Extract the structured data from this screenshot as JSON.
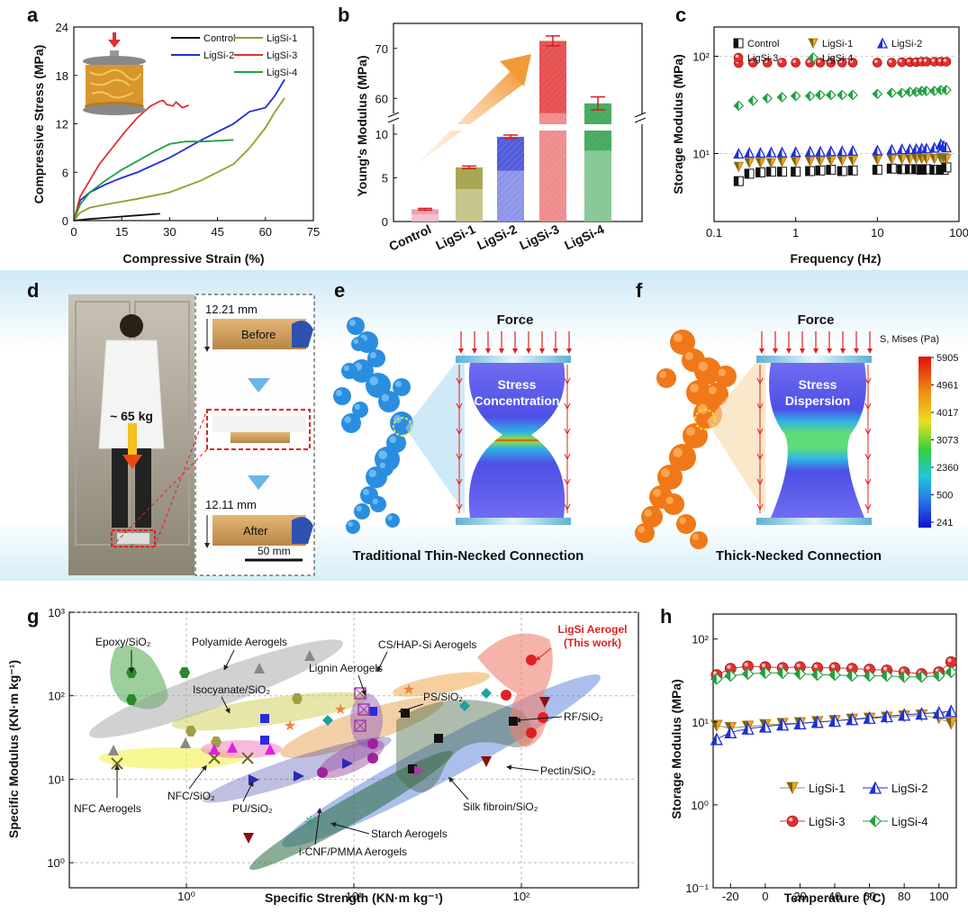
{
  "panels": {
    "a": "a",
    "b": "b",
    "c": "c",
    "d": "d",
    "e": "e",
    "f": "f",
    "g": "g",
    "h": "h"
  },
  "colors": {
    "control": "#111111",
    "ligsi1": "#9a9a2e",
    "ligsi2": "#1f2fd6",
    "ligsi3": "#e03030",
    "ligsi4": "#20a040"
  },
  "chart_data": [
    {
      "id": "a",
      "type": "line",
      "xlabel": "Compressive Strain (%)",
      "ylabel": "Compressive Stress (MPa)",
      "xlim": [
        0,
        75
      ],
      "ylim": [
        0,
        24
      ],
      "xticks": [
        "0",
        "15",
        "30",
        "45",
        "60",
        "75"
      ],
      "yticks": [
        "0",
        "6",
        "12",
        "18",
        "24"
      ],
      "series": [
        {
          "name": "Control",
          "x": [
            0,
            5,
            10,
            15,
            20,
            27
          ],
          "y": [
            0,
            0.2,
            0.35,
            0.5,
            0.65,
            0.85
          ]
        },
        {
          "name": "LigSi-1",
          "x": [
            0,
            2,
            5,
            10,
            20,
            30,
            40,
            50,
            55,
            60,
            63,
            66
          ],
          "y": [
            0,
            1,
            1.6,
            2,
            2.7,
            3.5,
            5,
            7,
            9,
            11.5,
            13.5,
            15.2
          ]
        },
        {
          "name": "LigSi-2",
          "x": [
            0,
            2,
            5,
            10,
            15,
            20,
            30,
            40,
            45,
            50,
            55,
            60,
            63,
            66
          ],
          "y": [
            0,
            2.5,
            3.5,
            4.5,
            5.3,
            6,
            7.8,
            10,
            11,
            12,
            13.5,
            14,
            15.5,
            17.5
          ]
        },
        {
          "name": "LigSi-3",
          "x": [
            0,
            2,
            5,
            8,
            12,
            16,
            20,
            24,
            27,
            28,
            29,
            31,
            32,
            34,
            36
          ],
          "y": [
            0,
            3,
            5,
            7,
            9,
            11,
            12.8,
            14.2,
            14.8,
            14.9,
            14.4,
            14.2,
            14.7,
            14.0,
            14.3
          ]
        },
        {
          "name": "LigSi-4",
          "x": [
            0,
            2,
            5,
            10,
            15,
            20,
            25,
            30,
            35,
            40,
            45,
            50
          ],
          "y": [
            0,
            2,
            3.5,
            5,
            6.3,
            7.4,
            8.5,
            9.5,
            9.8,
            9.8,
            9.9,
            10.0
          ]
        }
      ]
    },
    {
      "id": "b",
      "type": "bar",
      "xlabel": "",
      "ylabel": "Young's Modulus (MPa)",
      "categories": [
        "Control",
        "LigSi-1",
        "LigSi-2",
        "LigSi-3",
        "LigSi-4"
      ],
      "values": [
        1.4,
        6.2,
        9.7,
        71.5,
        59.0
      ],
      "errors": [
        0.1,
        0.15,
        0.2,
        1.0,
        1.3
      ],
      "ylim_lower": [
        0,
        10
      ],
      "ylim_upper": [
        55,
        75
      ],
      "yticks_lower": [
        "0",
        "5",
        "10"
      ],
      "yticks_upper": [
        "60",
        "70"
      ]
    },
    {
      "id": "c",
      "type": "scatter",
      "xlabel": "Frequency (Hz)",
      "ylabel": "Storage Modulus (MPa)",
      "xscale": "log",
      "yscale": "log",
      "xlim": [
        0.1,
        100
      ],
      "ylim": [
        2,
        200
      ],
      "xticks": [
        "0.1",
        "1",
        "10",
        "100"
      ],
      "yticks": [
        "10¹",
        "10²"
      ],
      "series": [
        {
          "name": "Control",
          "x": [
            0.2,
            0.27,
            0.37,
            0.5,
            0.68,
            1,
            1.5,
            2,
            2.7,
            3.7,
            5,
            10,
            15,
            20,
            25,
            30,
            35,
            40,
            50,
            60,
            65,
            70
          ],
          "y": [
            5.2,
            6.2,
            6.4,
            6.5,
            6.5,
            6.5,
            6.6,
            6.7,
            6.8,
            6.6,
            6.7,
            6.8,
            7,
            6.9,
            6.9,
            6.9,
            6.8,
            6.9,
            6.8,
            6.8,
            6.8,
            7.2
          ]
        },
        {
          "name": "LigSi-1",
          "x": [
            0.2,
            0.27,
            0.37,
            0.5,
            0.68,
            1,
            1.5,
            2,
            2.7,
            3.7,
            5,
            10,
            15,
            20,
            25,
            30,
            35,
            40,
            50,
            60,
            65,
            70
          ],
          "y": [
            7.3,
            8,
            8,
            8,
            8.2,
            8.2,
            8.3,
            8.3,
            8.4,
            8.4,
            8.4,
            8.6,
            8.7,
            8.7,
            8.7,
            8.8,
            8.8,
            8.8,
            8.8,
            8.9,
            9,
            8.8
          ]
        },
        {
          "name": "LigSi-2",
          "x": [
            0.2,
            0.27,
            0.37,
            0.5,
            0.68,
            1,
            1.5,
            2,
            2.7,
            3.7,
            5,
            10,
            15,
            20,
            25,
            30,
            35,
            40,
            50,
            60,
            65,
            70
          ],
          "y": [
            10,
            10.2,
            10.2,
            10.3,
            10.3,
            10.4,
            10.5,
            10.5,
            10.6,
            10.6,
            10.7,
            10.8,
            11,
            11.1,
            11.1,
            11.2,
            11.3,
            11.3,
            11.5,
            12.5,
            12,
            11.6
          ]
        },
        {
          "name": "LigSi-3",
          "x": [
            0.2,
            0.3,
            0.45,
            0.68,
            1,
            1.5,
            2,
            2.7,
            3.7,
            5,
            10,
            15,
            20,
            25,
            30,
            35,
            40,
            50,
            60,
            70
          ],
          "y": [
            85,
            86,
            86,
            86,
            86,
            86,
            86,
            86,
            86,
            86,
            86,
            86,
            87,
            87,
            87,
            88,
            88,
            88,
            88,
            88
          ]
        },
        {
          "name": "LigSi-4",
          "x": [
            0.2,
            0.3,
            0.45,
            0.68,
            1,
            1.5,
            2,
            2.7,
            3.7,
            5,
            10,
            15,
            20,
            25,
            30,
            35,
            40,
            50,
            60,
            70
          ],
          "y": [
            31,
            35,
            37,
            38,
            39,
            39,
            40,
            40,
            40,
            40,
            41,
            42,
            42,
            43,
            43,
            44,
            44,
            44,
            45,
            45
          ]
        }
      ]
    },
    {
      "id": "g",
      "type": "scatter",
      "xlabel": "Specific Strength (KN·m kg⁻¹)",
      "ylabel": "Specific Modulus (KN·m kg⁻¹)",
      "xscale": "log",
      "yscale": "log",
      "xlim": [
        0.2,
        500
      ],
      "ylim": [
        0.5,
        1000
      ],
      "xticks": [
        "10⁰",
        "10¹",
        "10²"
      ],
      "yticks": [
        "10⁰",
        "10¹",
        "10²",
        "10³"
      ],
      "labels": {
        "epoxy": "Epoxy/SiO₂",
        "polyamide": "Polyamide Aerogels",
        "cshap": "CS/HAP-Si Aerogels",
        "ligsi": "LigSi Aerogel",
        "thiswork": "(This work)",
        "isocyanate": "Isocyanate/SiO₂",
        "lignin": "Lignin Aerogels",
        "ps": "PS/SiO₂",
        "rf": "RF/SiO₂",
        "nfc_aero": "NFC Aerogels",
        "nfc_sio2": "NFC/SiO₂",
        "pu": "PU/SiO₂",
        "pectin": "Pectin/SiO₂",
        "silk": "Silk fibroin/SiO₂",
        "starch": "Starch Aerogels",
        "icnf": "i-CNF/PMMA Aerogels"
      }
    },
    {
      "id": "h",
      "type": "scatter",
      "xlabel": "Temperature (°C)",
      "ylabel": "Storage Modulus (MPa)",
      "yscale": "log",
      "xlim": [
        -30,
        110
      ],
      "ylim": [
        0.1,
        200
      ],
      "xticks": [
        "-20",
        "0",
        "20",
        "40",
        "60",
        "80",
        "100"
      ],
      "yticks": [
        "10⁻¹",
        "10⁰",
        "10¹",
        "10²"
      ],
      "series": [
        {
          "name": "LigSi-1",
          "x": [
            -28,
            -20,
            -10,
            0,
            10,
            20,
            30,
            40,
            50,
            60,
            70,
            80,
            90,
            100,
            107
          ],
          "y": [
            9,
            8.5,
            8.8,
            9.2,
            9.5,
            9.7,
            10,
            10.3,
            10.7,
            11,
            11.3,
            11.7,
            12,
            11.2,
            9.6
          ]
        },
        {
          "name": "LigSi-2",
          "x": [
            -28,
            -20,
            -10,
            0,
            10,
            20,
            30,
            40,
            50,
            60,
            70,
            80,
            90,
            100,
            107
          ],
          "y": [
            6.2,
            7.5,
            8.3,
            8.8,
            9.3,
            9.6,
            10,
            10.3,
            10.8,
            11.2,
            11.7,
            12.2,
            12.6,
            13,
            13.5
          ]
        },
        {
          "name": "LigSi-3",
          "x": [
            -28,
            -20,
            -10,
            0,
            10,
            20,
            30,
            40,
            50,
            60,
            70,
            80,
            90,
            100,
            107
          ],
          "y": [
            37,
            44,
            47,
            46,
            45,
            46,
            45,
            45,
            44,
            43,
            42,
            40,
            38,
            40,
            53
          ]
        },
        {
          "name": "LigSi-4",
          "x": [
            -28,
            -20,
            -10,
            0,
            10,
            20,
            30,
            40,
            50,
            60,
            70,
            80,
            90,
            100,
            107
          ],
          "y": [
            33,
            36,
            38,
            39,
            39,
            38,
            37,
            37,
            36,
            36,
            36,
            35,
            35,
            36,
            40
          ]
        }
      ]
    }
  ],
  "legend_names": [
    "Control",
    "LigSi-1",
    "LigSi-2",
    "LigSi-3",
    "LigSi-4"
  ],
  "panel_d": {
    "weight": "~ 65 kg",
    "before_mm": "12.21 mm",
    "before": "Before",
    "after_mm": "12.11 mm",
    "after": "After",
    "scale": "50 mm"
  },
  "panel_e": {
    "force": "Force",
    "stress1": "Stress",
    "stress2": "Concentration",
    "caption": "Traditional Thin-Necked Connection"
  },
  "panel_f": {
    "force": "Force",
    "stress1": "Stress",
    "stress2": "Dispersion",
    "caption": "Thick-Necked Connection"
  },
  "colorbar": {
    "title": "S, Mises (Pa)",
    "values": [
      "5905",
      "4961",
      "4017",
      "3073",
      "2360",
      "500",
      "241"
    ]
  }
}
